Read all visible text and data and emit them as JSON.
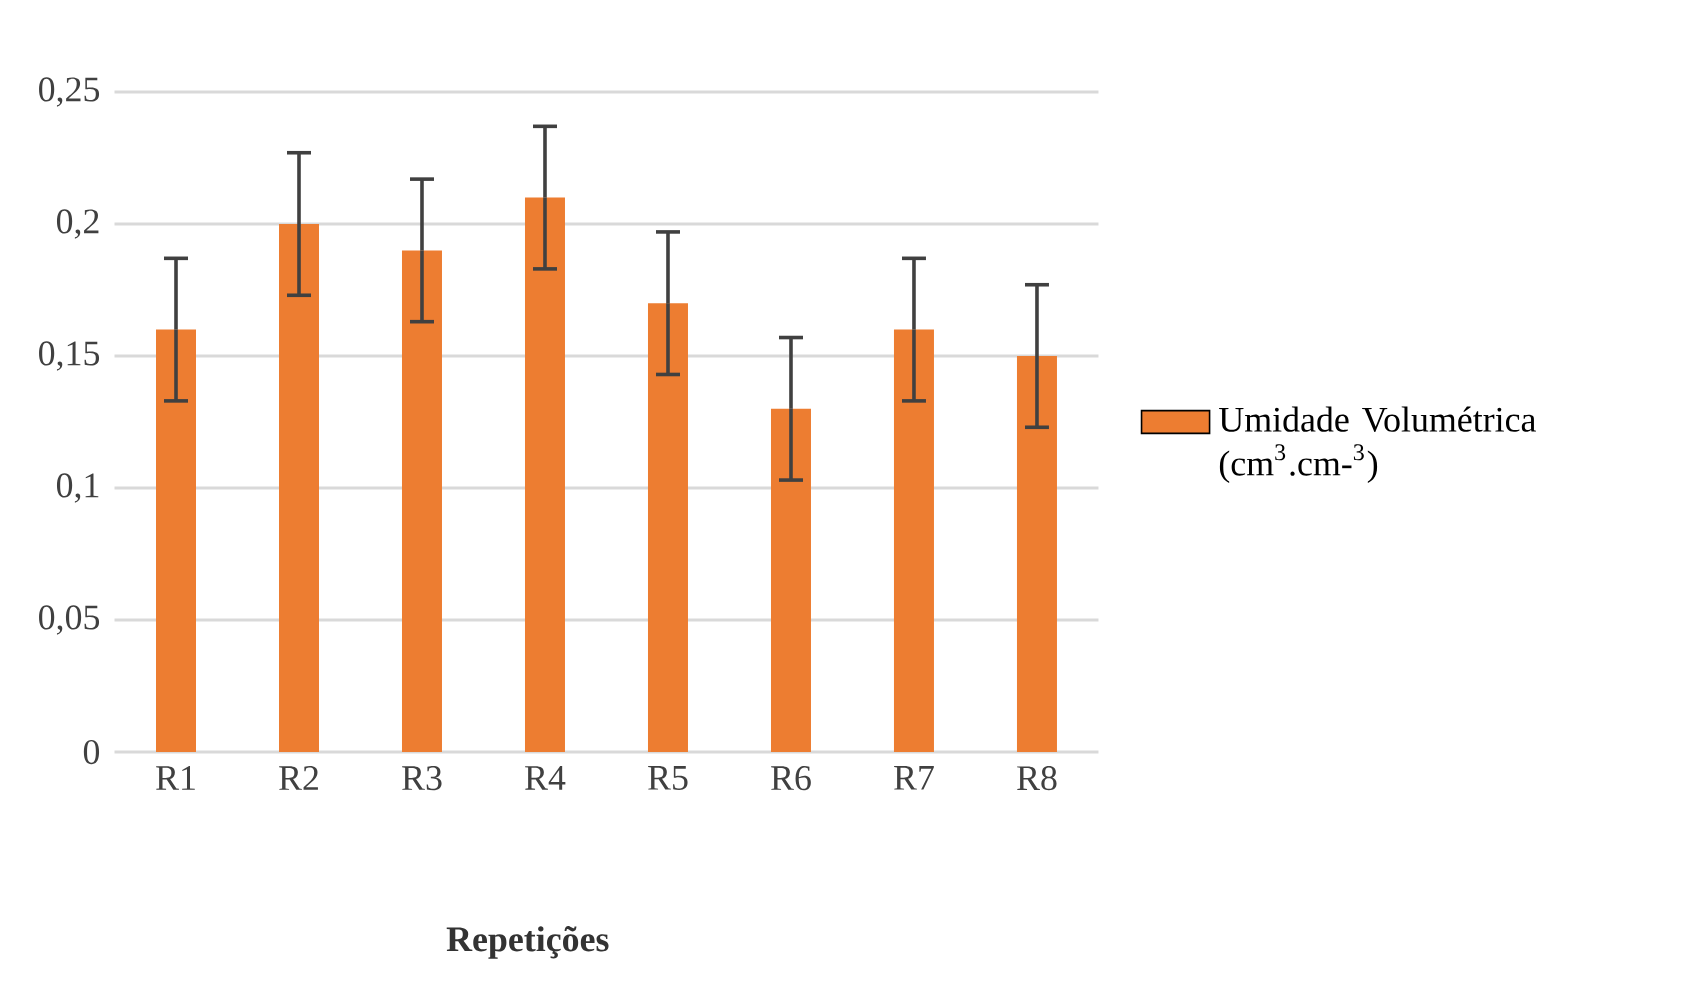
{
  "chart_data": {
    "type": "bar",
    "xlabel": "Repetições",
    "categories": [
      "R1",
      "R2",
      "R3",
      "R4",
      "R5",
      "R6",
      "R7",
      "R8"
    ],
    "series": [
      {
        "name": "Umidade Volumétrica (cm$^{3}$.cm-$^{3}$)",
        "color": "#ed7d31",
        "values": [
          0.16,
          0.2,
          0.19,
          0.21,
          0.17,
          0.13,
          0.16,
          0.15
        ],
        "errors": [
          0.027,
          0.027,
          0.027,
          0.027,
          0.027,
          0.027,
          0.027,
          0.027
        ]
      }
    ],
    "ylim": [
      0,
      0.25
    ],
    "yticks": [
      0,
      {
        "value": 0.05,
        "label": "0,05"
      },
      {
        "value": 0.1,
        "label": "0,1"
      },
      {
        "value": 0.15,
        "label": "0,15"
      },
      {
        "value": 0.2,
        "label": "0,2"
      },
      {
        "value": 0.25,
        "label": "0,25"
      }
    ],
    "grid": "y",
    "legend": "right"
  }
}
